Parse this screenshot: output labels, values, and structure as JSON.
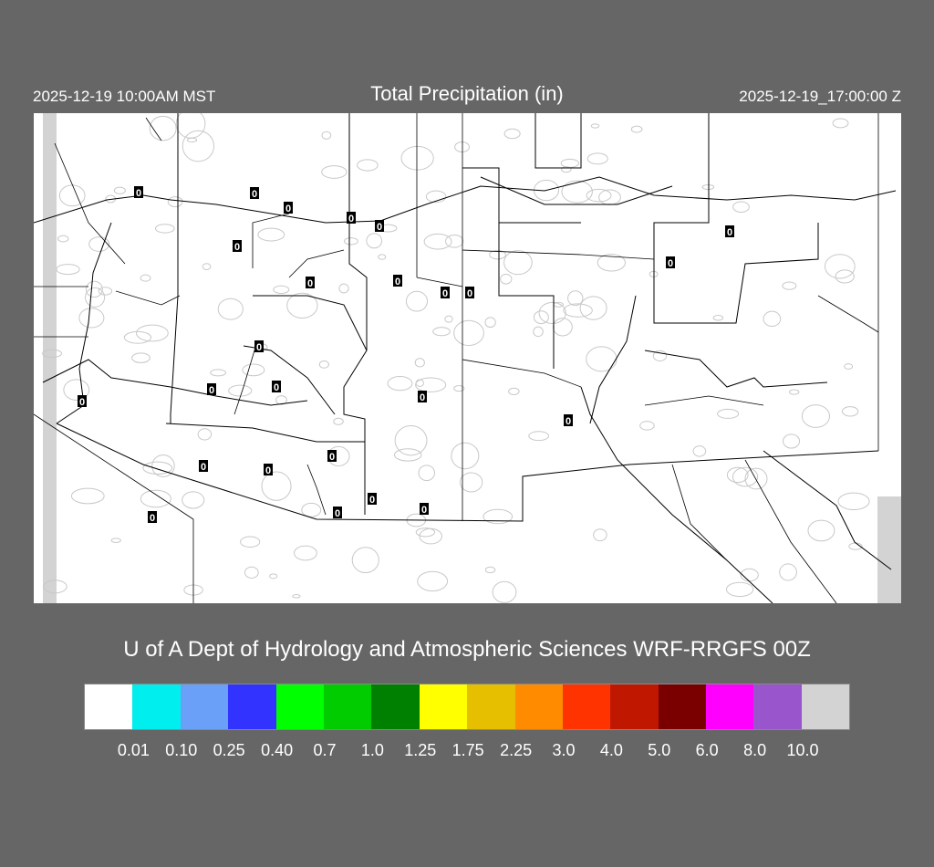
{
  "header": {
    "local_time": "2025-12-19 10:00AM MST",
    "title": "Total Precipitation (in)",
    "valid_time": "2025-12-19_17:00:00 Z"
  },
  "credit": "U of A Dept of Hydrology and Atmospheric Sciences WRF-RRGFS 00Z",
  "map": {
    "background": "#ffffff",
    "border_color": "#000000",
    "terrain_contour_color": "#bbbbbb",
    "station_values": [
      "0",
      "0",
      "0",
      "0",
      "0",
      "0",
      "0",
      "0",
      "0",
      "0",
      "0",
      "0",
      "0",
      "0",
      "0",
      "0",
      "0",
      "0",
      "0",
      "0",
      "0",
      "0",
      "0",
      "0",
      "0"
    ]
  },
  "legend": {
    "colors": [
      "#ffffff",
      "#00eeee",
      "#6aa0f8",
      "#3333ff",
      "#00ff00",
      "#00cc00",
      "#008000",
      "#ffff00",
      "#e6c000",
      "#ff8c00",
      "#ff3300",
      "#c01800",
      "#7a0000",
      "#ff00ff",
      "#9955cc",
      "#d3d3d3"
    ],
    "labels": [
      "0.01",
      "0.10",
      "0.25",
      "0.40",
      "0.7",
      "1.0",
      "1.25",
      "1.75",
      "2.25",
      "3.0",
      "4.0",
      "5.0",
      "6.0",
      "8.0",
      "10.0"
    ]
  }
}
